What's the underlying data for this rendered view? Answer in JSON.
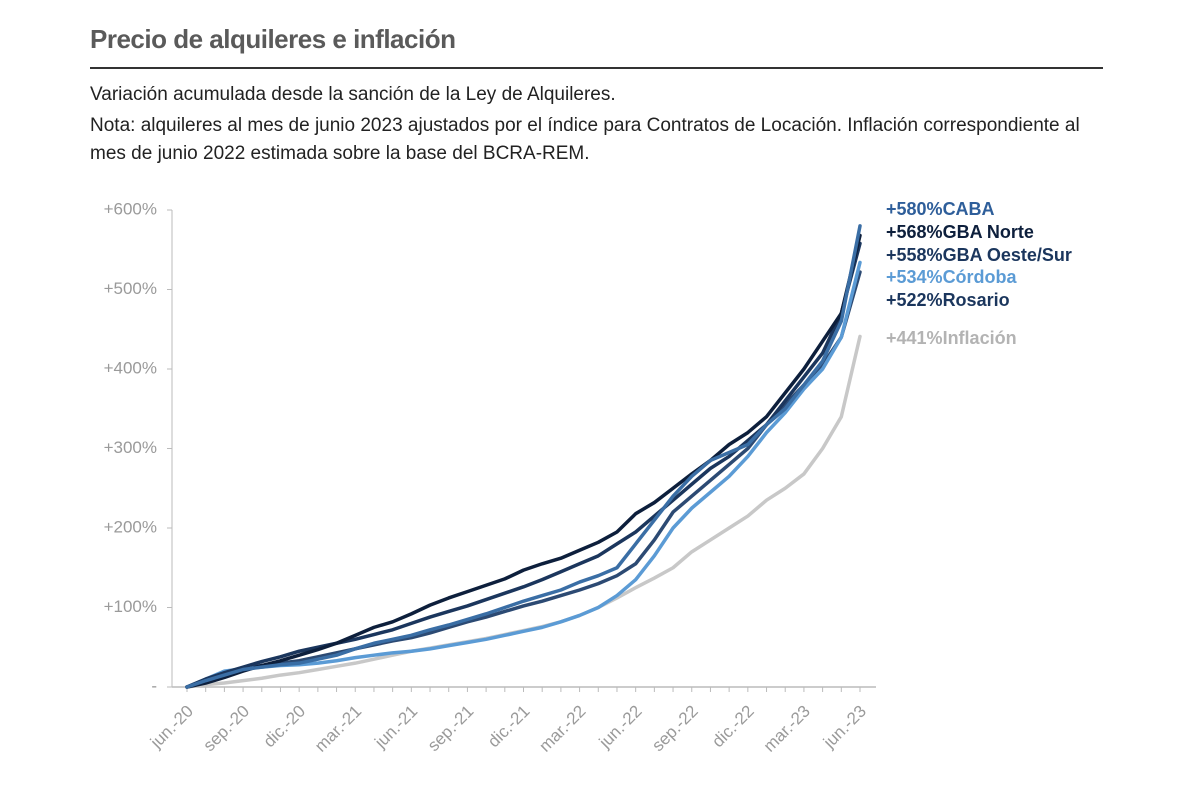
{
  "chart_data": {
    "type": "line",
    "title": "Precio de alquileres e inflación",
    "subtitle": "Variación acumulada desde la sanción de la Ley de Alquileres.",
    "note": "Nota: alquileres al mes de junio 2023 ajustados por el índice para Contratos de Locación. Inflación correspondiente al mes de junio 2022 estimada sobre la base del BCRA-REM.",
    "categories": [
      "jun.-20",
      null,
      null,
      "sep.-20",
      null,
      null,
      "dic.-20",
      null,
      null,
      "mar.-21",
      null,
      null,
      "jun.-21",
      null,
      null,
      "sep.-21",
      null,
      null,
      "dic.-21",
      null,
      null,
      "mar.-22",
      null,
      null,
      "jun.-22",
      null,
      null,
      "sep.-22",
      null,
      null,
      "dic.-22",
      null,
      null,
      "mar.-23",
      null,
      null,
      "jun.-23"
    ],
    "ylim": [
      0,
      600
    ],
    "yticks": [
      {
        "value": 0,
        "label": "-"
      },
      {
        "value": 100,
        "label": "+100%"
      },
      {
        "value": 200,
        "label": "+200%"
      },
      {
        "value": 300,
        "label": "+300%"
      },
      {
        "value": 400,
        "label": "+400%"
      },
      {
        "value": 500,
        "label": "+500%"
      },
      {
        "value": 600,
        "label": "+600%"
      }
    ],
    "grid": false,
    "series": [
      {
        "name": "CABA",
        "color": "#3a6ea5",
        "values": [
          0,
          8,
          15,
          22,
          25,
          28,
          30,
          35,
          40,
          48,
          55,
          60,
          65,
          72,
          78,
          85,
          92,
          100,
          108,
          115,
          122,
          132,
          140,
          150,
          180,
          210,
          240,
          265,
          285,
          295,
          305,
          330,
          350,
          380,
          410,
          460,
          580
        ],
        "value_labels": [
          null,
          null,
          null,
          null,
          null,
          null,
          null,
          null,
          null,
          null,
          null,
          null,
          null,
          null,
          null,
          null,
          null,
          null,
          null,
          null,
          null,
          null,
          null,
          null,
          null,
          null,
          null,
          null,
          null,
          null,
          null,
          null,
          null,
          null,
          null,
          null,
          "+580%"
        ]
      },
      {
        "name": "GBA Norte",
        "color": "#0d1f3c",
        "values": [
          0,
          5,
          12,
          20,
          27,
          33,
          40,
          47,
          55,
          65,
          75,
          82,
          92,
          103,
          112,
          120,
          128,
          136,
          147,
          155,
          162,
          172,
          182,
          195,
          218,
          232,
          250,
          268,
          285,
          305,
          320,
          340,
          370,
          400,
          435,
          470,
          568
        ],
        "value_labels": [
          null,
          null,
          null,
          null,
          null,
          null,
          null,
          null,
          null,
          null,
          null,
          null,
          null,
          null,
          null,
          null,
          null,
          null,
          null,
          null,
          null,
          null,
          null,
          null,
          null,
          null,
          null,
          null,
          null,
          null,
          null,
          null,
          null,
          null,
          null,
          null,
          "+568%"
        ]
      },
      {
        "name": "GBA Oeste/Sur",
        "color": "#1b365d",
        "values": [
          0,
          10,
          18,
          25,
          32,
          38,
          45,
          50,
          55,
          60,
          66,
          72,
          80,
          88,
          95,
          102,
          110,
          118,
          126,
          135,
          145,
          155,
          165,
          180,
          195,
          215,
          235,
          255,
          275,
          290,
          310,
          330,
          360,
          390,
          420,
          470,
          558
        ],
        "value_labels": [
          null,
          null,
          null,
          null,
          null,
          null,
          null,
          null,
          null,
          null,
          null,
          null,
          null,
          null,
          null,
          null,
          null,
          null,
          null,
          null,
          null,
          null,
          null,
          null,
          null,
          null,
          null,
          null,
          null,
          null,
          null,
          null,
          null,
          null,
          null,
          null,
          "+558%"
        ]
      },
      {
        "name": "Córdoba",
        "color": "#5b9bd5",
        "values": [
          0,
          10,
          20,
          23,
          25,
          27,
          28,
          30,
          33,
          37,
          40,
          43,
          45,
          48,
          52,
          56,
          60,
          65,
          70,
          75,
          82,
          90,
          100,
          115,
          135,
          165,
          200,
          225,
          245,
          265,
          290,
          320,
          345,
          375,
          400,
          440,
          534
        ],
        "value_labels": [
          null,
          null,
          null,
          null,
          null,
          null,
          null,
          null,
          null,
          null,
          null,
          null,
          null,
          null,
          null,
          null,
          null,
          null,
          null,
          null,
          null,
          null,
          null,
          null,
          null,
          null,
          null,
          null,
          null,
          null,
          null,
          null,
          null,
          null,
          null,
          null,
          "+534%"
        ]
      },
      {
        "name": "Rosario",
        "color": "#2c4a73",
        "values": [
          0,
          8,
          18,
          23,
          27,
          30,
          33,
          38,
          43,
          48,
          53,
          58,
          62,
          68,
          75,
          82,
          88,
          95,
          102,
          108,
          115,
          122,
          130,
          140,
          155,
          185,
          220,
          240,
          260,
          280,
          300,
          330,
          355,
          380,
          405,
          440,
          522
        ],
        "value_labels": [
          null,
          null,
          null,
          null,
          null,
          null,
          null,
          null,
          null,
          null,
          null,
          null,
          null,
          null,
          null,
          null,
          null,
          null,
          null,
          null,
          null,
          null,
          null,
          null,
          null,
          null,
          null,
          null,
          null,
          null,
          null,
          null,
          null,
          null,
          null,
          null,
          "+522%"
        ]
      },
      {
        "name": "Inflación",
        "color": "#c8c8c8",
        "values": [
          0,
          3,
          5,
          8,
          11,
          15,
          18,
          22,
          26,
          30,
          35,
          40,
          45,
          49,
          53,
          57,
          61,
          66,
          71,
          76,
          82,
          90,
          100,
          112,
          125,
          137,
          150,
          170,
          185,
          200,
          215,
          235,
          250,
          268,
          300,
          340,
          441
        ],
        "value_labels": [
          null,
          null,
          null,
          null,
          null,
          null,
          null,
          null,
          null,
          null,
          null,
          null,
          null,
          null,
          null,
          null,
          null,
          null,
          null,
          null,
          null,
          null,
          null,
          null,
          null,
          null,
          null,
          null,
          null,
          null,
          null,
          null,
          null,
          null,
          null,
          null,
          "+441%"
        ]
      }
    ]
  }
}
